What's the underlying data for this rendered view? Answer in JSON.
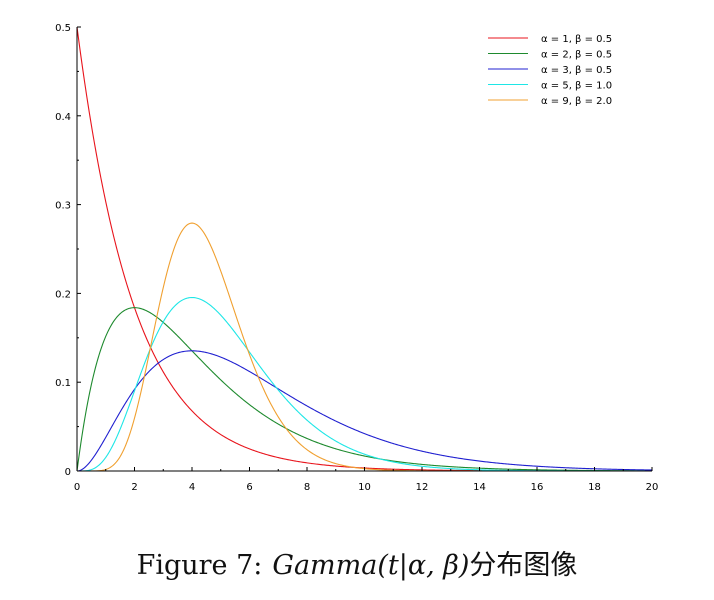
{
  "chart_data": {
    "type": "line",
    "xlim": [
      0,
      20
    ],
    "ylim": [
      0,
      0.5
    ],
    "x_ticks": [
      0,
      2,
      4,
      6,
      8,
      10,
      12,
      14,
      16,
      18,
      20
    ],
    "y_ticks": [
      0,
      0.1,
      0.2,
      0.3,
      0.4,
      0.5
    ],
    "x_tick_labels": [
      "0",
      "2",
      "4",
      "6",
      "8",
      "10",
      "12",
      "14",
      "16",
      "18",
      "20"
    ],
    "y_tick_labels": [
      "0",
      "0.1",
      "0.2",
      "0.3",
      "0.4",
      "0.5"
    ],
    "grid": false,
    "legend_position": "top-right",
    "series": [
      {
        "name": "α = 1,   β = 0.5",
        "alpha": 1,
        "beta": 0.5,
        "color": "#e8141c"
      },
      {
        "name": "α = 2,   β = 0.5",
        "alpha": 2,
        "beta": 0.5,
        "color": "#1e8a2e"
      },
      {
        "name": "α = 3,   β = 0.5",
        "alpha": 3,
        "beta": 0.5,
        "color": "#2020d0"
      },
      {
        "name": "α = 5,   β = 1.0",
        "alpha": 5,
        "beta": 1.0,
        "color": "#1ee6e6"
      },
      {
        "name": "α = 9,   β = 2.0",
        "alpha": 9,
        "beta": 2.0,
        "color": "#f0a030"
      }
    ]
  },
  "caption": {
    "label": "Figure 7:",
    "formula": "Gamma(t|α, β)",
    "suffix": "分布图像"
  }
}
